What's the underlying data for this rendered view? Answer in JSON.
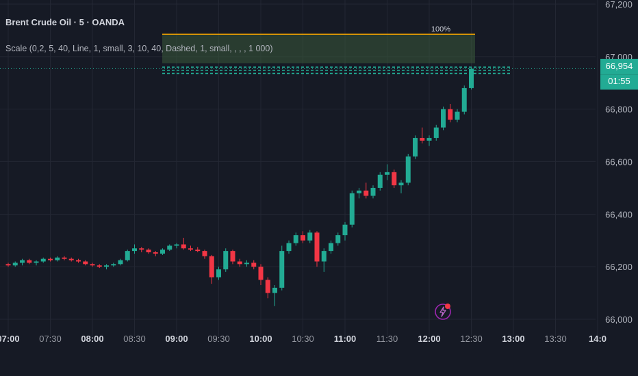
{
  "header": {
    "title": "Brent Crude Oil · 5 · OANDA",
    "indicator": "Scale (0,2, 5, 40, Line, 1, small, 3, 10, 40, Dashed, 1, small, , , , 1 000)"
  },
  "price_tag": {
    "price": "66,954",
    "countdown": "01:55"
  },
  "colors": {
    "background": "#161a25",
    "grid": "#232733",
    "up": "#22ab94",
    "down": "#f23645",
    "fib_line": "#f7a600",
    "fib_zone": "#3a5a3a",
    "text": "#b2b5be",
    "bolt": "#9c27b0"
  },
  "chart_data": {
    "type": "candlestick",
    "title": "Brent Crude Oil · 5 · OANDA",
    "interval": "5",
    "source": "OANDA",
    "ylim": [
      65950,
      67220
    ],
    "y_ticks": [
      "67,200",
      "67,000",
      "66,800",
      "66,600",
      "66,400",
      "66,200",
      "66,000"
    ],
    "y_tick_values": [
      67200,
      67000,
      66800,
      66600,
      66400,
      66200,
      66000
    ],
    "x_ticks": [
      {
        "label": "07:00",
        "bold": true
      },
      {
        "label": "07:30",
        "bold": false
      },
      {
        "label": "08:00",
        "bold": true
      },
      {
        "label": "08:30",
        "bold": false
      },
      {
        "label": "09:00",
        "bold": true
      },
      {
        "label": "09:30",
        "bold": false
      },
      {
        "label": "10:00",
        "bold": true
      },
      {
        "label": "10:30",
        "bold": false
      },
      {
        "label": "11:00",
        "bold": true
      },
      {
        "label": "11:30",
        "bold": false
      },
      {
        "label": "12:00",
        "bold": true
      },
      {
        "label": "12:30",
        "bold": false
      },
      {
        "label": "13:00",
        "bold": true
      },
      {
        "label": "13:30",
        "bold": false
      },
      {
        "label": "14:0",
        "bold": true
      }
    ],
    "current_price": 66954,
    "fib_zone": {
      "label": "100%",
      "top": 67085,
      "bottom": 66975,
      "lines": [
        66960,
        66948,
        66936
      ]
    },
    "candles": [
      [
        66210,
        66215,
        66200,
        66205
      ],
      [
        66205,
        66220,
        66200,
        66215
      ],
      [
        66215,
        66230,
        66205,
        66225
      ],
      [
        66225,
        66230,
        66210,
        66215
      ],
      [
        66215,
        66225,
        66205,
        66220
      ],
      [
        66220,
        66235,
        66215,
        66230
      ],
      [
        66230,
        66235,
        66220,
        66225
      ],
      [
        66225,
        66240,
        66220,
        66235
      ],
      [
        66235,
        66240,
        66225,
        66230
      ],
      [
        66230,
        66235,
        66220,
        66225
      ],
      [
        66225,
        66230,
        66215,
        66220
      ],
      [
        66220,
        66225,
        66205,
        66210
      ],
      [
        66210,
        66215,
        66200,
        66205
      ],
      [
        66205,
        66210,
        66195,
        66200
      ],
      [
        66200,
        66210,
        66190,
        66205
      ],
      [
        66205,
        66215,
        66200,
        66210
      ],
      [
        66210,
        66230,
        66205,
        66225
      ],
      [
        66225,
        66265,
        66220,
        66260
      ],
      [
        66260,
        66285,
        66250,
        66270
      ],
      [
        66270,
        66275,
        66255,
        66265
      ],
      [
        66265,
        66270,
        66250,
        66255
      ],
      [
        66255,
        66260,
        66240,
        66250
      ],
      [
        66250,
        66270,
        66245,
        66265
      ],
      [
        66265,
        66285,
        66260,
        66280
      ],
      [
        66280,
        66290,
        66270,
        66285
      ],
      [
        66285,
        66310,
        66265,
        66270
      ],
      [
        66270,
        66280,
        66260,
        66265
      ],
      [
        66265,
        66275,
        66255,
        66260
      ],
      [
        66260,
        66265,
        66230,
        66240
      ],
      [
        66240,
        66245,
        66135,
        66160
      ],
      [
        66160,
        66200,
        66150,
        66190
      ],
      [
        66190,
        66270,
        66180,
        66260
      ],
      [
        66260,
        66265,
        66210,
        66220
      ],
      [
        66220,
        66230,
        66200,
        66210
      ],
      [
        66210,
        66225,
        66200,
        66215
      ],
      [
        66215,
        66225,
        66190,
        66200
      ],
      [
        66200,
        66210,
        66130,
        66150
      ],
      [
        66150,
        66160,
        66080,
        66100
      ],
      [
        66100,
        66130,
        66050,
        66120
      ],
      [
        66120,
        66280,
        66110,
        66260
      ],
      [
        66260,
        66300,
        66250,
        66290
      ],
      [
        66290,
        66330,
        66280,
        66320
      ],
      [
        66320,
        66335,
        66290,
        66300
      ],
      [
        66300,
        66340,
        66290,
        66330
      ],
      [
        66330,
        66335,
        66200,
        66220
      ],
      [
        66220,
        66270,
        66180,
        66260
      ],
      [
        66260,
        66300,
        66250,
        66290
      ],
      [
        66290,
        66330,
        66280,
        66320
      ],
      [
        66320,
        66370,
        66300,
        66360
      ],
      [
        66360,
        66490,
        66350,
        66480
      ],
      [
        66480,
        66500,
        66460,
        66490
      ],
      [
        66490,
        66520,
        66460,
        66470
      ],
      [
        66470,
        66510,
        66460,
        66500
      ],
      [
        66500,
        66560,
        66490,
        66550
      ],
      [
        66550,
        66590,
        66530,
        66560
      ],
      [
        66560,
        66570,
        66500,
        66510
      ],
      [
        66510,
        66530,
        66480,
        66520
      ],
      [
        66520,
        66630,
        66510,
        66620
      ],
      [
        66620,
        66700,
        66610,
        66690
      ],
      [
        66690,
        66730,
        66670,
        66680
      ],
      [
        66680,
        66700,
        66660,
        66690
      ],
      [
        66690,
        66740,
        66680,
        66730
      ],
      [
        66730,
        66810,
        66720,
        66800
      ],
      [
        66800,
        66820,
        66750,
        66760
      ],
      [
        66760,
        66800,
        66750,
        66790
      ],
      [
        66790,
        66890,
        66780,
        66880
      ],
      [
        66880,
        66960,
        66875,
        66954
      ]
    ],
    "start_time": "07:00",
    "bar_minutes": 5
  }
}
